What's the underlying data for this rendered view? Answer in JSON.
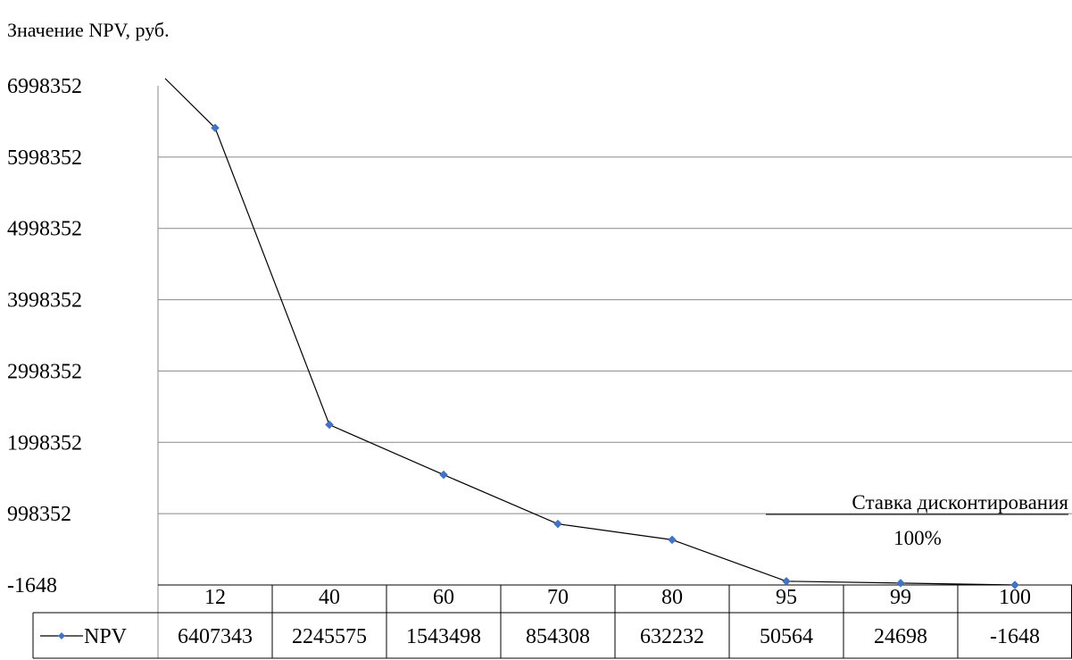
{
  "chart_data": {
    "type": "line",
    "title": "Значение NPV, руб.",
    "categories": [
      "12",
      "40",
      "60",
      "70",
      "80",
      "95",
      "99",
      "100"
    ],
    "series": [
      {
        "name": "NPV",
        "color": "#4472C4",
        "values": [
          6407343,
          2245575,
          1543498,
          854308,
          632232,
          50564,
          24698,
          -1648
        ]
      }
    ],
    "lead_in_value": 7100000,
    "y_ticks": [
      "6998352",
      "5998352",
      "4998352",
      "3998352",
      "2998352",
      "1998352",
      "998352",
      "-1648"
    ],
    "ylim": [
      -1648,
      6998352
    ],
    "grid": true,
    "legend": "data-table",
    "data_table": true,
    "annotation": {
      "label": "Ставка дисконтирования",
      "value": "100%"
    }
  }
}
